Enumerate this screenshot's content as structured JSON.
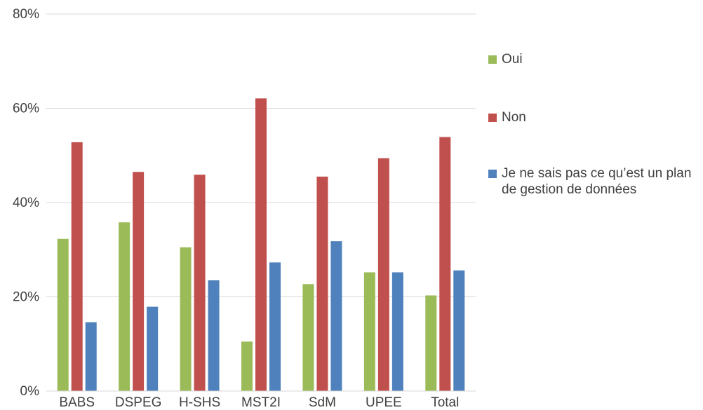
{
  "chart_data": {
    "type": "bar",
    "title": "",
    "xlabel": "",
    "ylabel": "",
    "categories": [
      "BABS",
      "DSPEG",
      "H-SHS",
      "MST2I",
      "SdM",
      "UPEE",
      "Total"
    ],
    "series": [
      {
        "name": "Oui",
        "color": "#9bbb59",
        "values": [
          32.3,
          35.8,
          30.5,
          10.5,
          22.7,
          25.2,
          20.3
        ]
      },
      {
        "name": "Non",
        "color": "#c0504d",
        "values": [
          52.8,
          46.5,
          45.9,
          62.1,
          45.5,
          49.4,
          53.9
        ]
      },
      {
        "name": "Je ne sais pas ce qu’est un plan de gestion de données",
        "color": "#4f81bd",
        "values": [
          14.6,
          17.9,
          23.5,
          27.3,
          31.8,
          25.2,
          25.6
        ]
      }
    ],
    "ylim": [
      0,
      80
    ],
    "yticks": [
      0,
      20,
      40,
      60,
      80
    ],
    "ytick_labels": [
      "0%",
      "20%",
      "40%",
      "60%",
      "80%"
    ],
    "grid": true,
    "legend_position": "right"
  }
}
